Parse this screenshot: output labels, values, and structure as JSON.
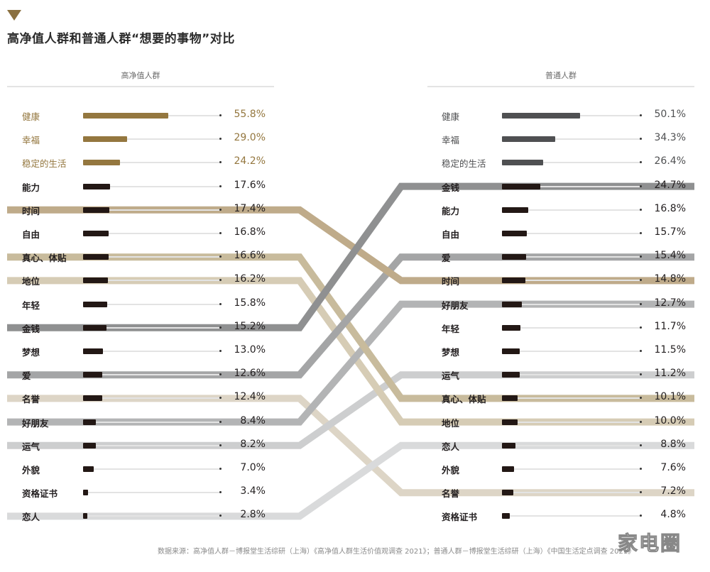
{
  "header": {
    "title": "高净值人群和普通人群“想要的事物”对比",
    "marker_color": "#8a7040"
  },
  "groups": {
    "left": {
      "title": "高净值人群"
    },
    "right": {
      "title": "普通人群"
    }
  },
  "source_note": "数据来源：高净值人群－博报堂生活综研（上海）《高净值人群生活价值观调查 2021》；普通人群－博报堂生活综研（上海）《中国生活定点调查 2021》",
  "watermark": "家电圈",
  "colors": {
    "top3_left": "#94773f",
    "top3_left_text": "#94773f",
    "top3_right": "#4f5052",
    "top3_right_text": "#4f5052",
    "bar_default": "#231815",
    "track": "#e3e3e3"
  },
  "chart_data": [
    {
      "type": "bar",
      "title": "高净值人群",
      "orientation": "horizontal",
      "categories": [
        "健康",
        "幸福",
        "稳定的生活",
        "能力",
        "时间",
        "自由",
        "真心、体贴",
        "地位",
        "年轻",
        "金钱",
        "梦想",
        "爱",
        "名誉",
        "好朋友",
        "运气",
        "外貌",
        "资格证书",
        "恋人"
      ],
      "values": [
        55.8,
        29.0,
        24.2,
        17.6,
        17.4,
        16.8,
        16.6,
        16.2,
        15.8,
        15.2,
        13.0,
        12.6,
        12.4,
        8.4,
        8.2,
        7.0,
        3.4,
        2.8
      ],
      "labels": [
        "55.8%",
        "29.0%",
        "24.2%",
        "17.6%",
        "17.4%",
        "16.8%",
        "16.6%",
        "16.2%",
        "15.8%",
        "15.2%",
        "13.0%",
        "12.6%",
        "12.4%",
        "8.4%",
        "8.2%",
        "7.0%",
        "3.4%",
        "2.8%"
      ],
      "unit": "%"
    },
    {
      "type": "bar",
      "title": "普通人群",
      "orientation": "horizontal",
      "categories": [
        "健康",
        "幸福",
        "稳定的生活",
        "金钱",
        "能力",
        "自由",
        "爱",
        "时间",
        "好朋友",
        "年轻",
        "梦想",
        "运气",
        "真心、体贴",
        "地位",
        "恋人",
        "外貌",
        "名誉",
        "资格证书"
      ],
      "values": [
        50.1,
        34.3,
        26.4,
        24.7,
        16.8,
        15.7,
        15.4,
        14.8,
        12.7,
        11.7,
        11.5,
        11.2,
        10.1,
        10.0,
        8.8,
        7.6,
        7.2,
        4.8
      ],
      "labels": [
        "50.1%",
        "34.3%",
        "26.4%",
        "24.7%",
        "16.8%",
        "15.7%",
        "15.4%",
        "14.8%",
        "12.7%",
        "11.7%",
        "11.5%",
        "11.2%",
        "10.1%",
        "10.0%",
        "8.8%",
        "7.6%",
        "7.2%",
        "4.8%"
      ],
      "unit": "%"
    }
  ],
  "connectors": [
    {
      "item": "名誉",
      "left_index": 12,
      "right_index": 16,
      "color": "#ddd5c6"
    },
    {
      "item": "恋人",
      "left_index": 17,
      "right_index": 14,
      "color": "#d9dadb"
    },
    {
      "item": "运气",
      "left_index": 14,
      "right_index": 11,
      "color": "#cdcecf"
    },
    {
      "item": "地位",
      "left_index": 7,
      "right_index": 13,
      "color": "#d6ccb5"
    },
    {
      "item": "好朋友",
      "left_index": 13,
      "right_index": 8,
      "color": "#b3b4b5"
    },
    {
      "item": "真心、体贴",
      "left_index": 6,
      "right_index": 12,
      "color": "#c8bb9c"
    },
    {
      "item": "爱",
      "left_index": 11,
      "right_index": 6,
      "color": "#a4a5a6"
    },
    {
      "item": "时间",
      "left_index": 4,
      "right_index": 7,
      "color": "#bfab8a"
    },
    {
      "item": "金钱",
      "left_index": 9,
      "right_index": 3,
      "color": "#8f9091"
    }
  ]
}
